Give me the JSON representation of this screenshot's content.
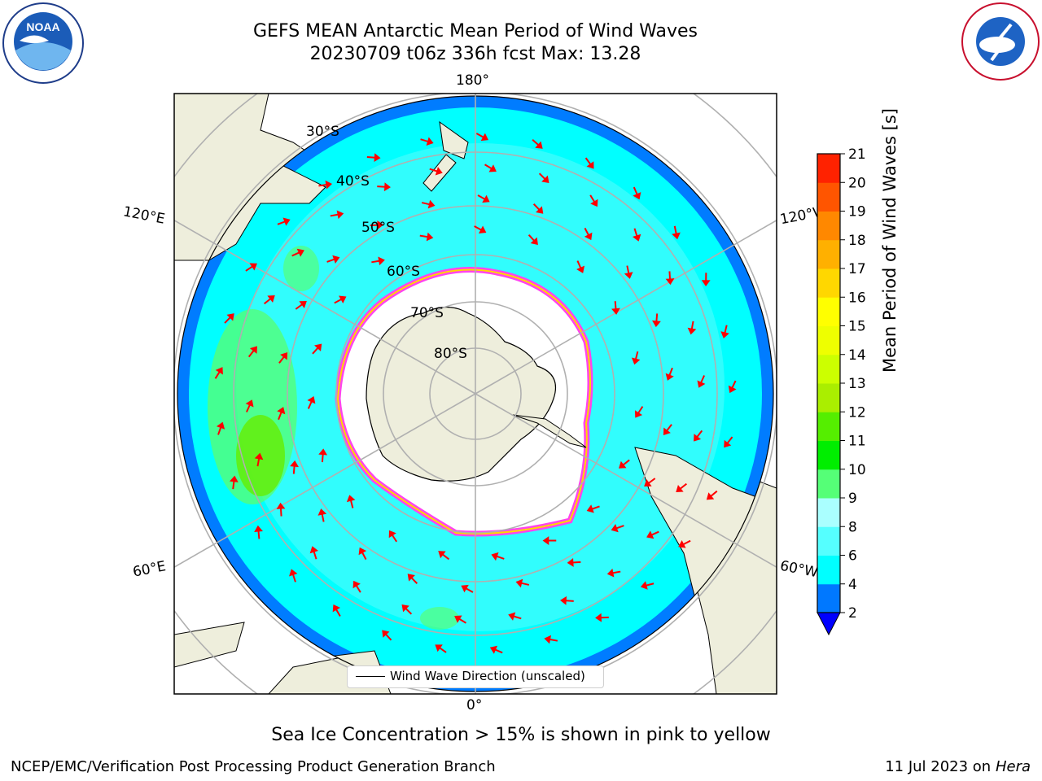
{
  "title_line1": "GEFS MEAN Antarctic Mean Period of Wind Waves",
  "title_line2": "20230709 t06z 336h fcst   Max: 13.28",
  "logos": {
    "left": "noaa-logo",
    "right": "nws-logo"
  },
  "map": {
    "projection": "south-polar-stereographic",
    "longitude_labels": [
      "180°",
      "120°E",
      "120°W",
      "60°E",
      "60°W",
      "0°"
    ],
    "latitude_labels": [
      "30°S",
      "40°S",
      "50°S",
      "60°S",
      "70°S",
      "80°S"
    ],
    "colors": {
      "land": "#eeeedc",
      "ocean_4_6": "#00ffff",
      "ocean_6_8": "#5afcfc",
      "ocean_2_4": "#007cff",
      "ice_edge": "#ff44ee",
      "arrow": "#ff0000",
      "gridline": "#b0b0b0"
    },
    "legend_label": "Wind Wave Direction (unscaled)"
  },
  "colorbar": {
    "label": "Mean Period of Wind Waves [s]",
    "ticks": [
      "2",
      "4",
      "6",
      "8",
      "9",
      "10",
      "11",
      "12",
      "13",
      "14",
      "15",
      "16",
      "17",
      "18",
      "19",
      "20",
      "21"
    ],
    "colors": [
      "#0078ff",
      "#00ffff",
      "#55ffff",
      "#aaffff",
      "#55ff77",
      "#00ee00",
      "#55ee00",
      "#aaee00",
      "#ccff00",
      "#eeff00",
      "#ffff00",
      "#ffd700",
      "#ffb000",
      "#ff8800",
      "#ff5500",
      "#ff2200",
      "#ff0000"
    ],
    "under_color": "#0000ff"
  },
  "subnote": "Sea Ice Concentration > 15% is shown in pink to yellow",
  "footer_left": "NCEP/EMC/Verification Post Processing Product Generation Branch",
  "footer_right_date": "11 Jul 2023 on ",
  "footer_right_host": "Hera"
}
